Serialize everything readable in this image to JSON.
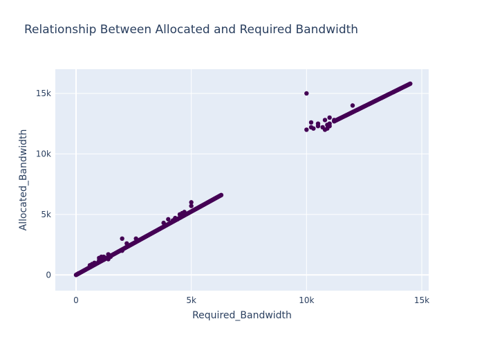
{
  "chart_data": {
    "type": "scatter",
    "title": "Relationship Between Allocated and Required Bandwidth",
    "xlabel": "Required_Bandwidth",
    "ylabel": "Allocated_Bandwidth",
    "xlim": [
      -900,
      15300
    ],
    "ylim": [
      -1300,
      17000
    ],
    "xticks": [
      {
        "value": 0,
        "label": "0"
      },
      {
        "value": 5000,
        "label": "5k"
      },
      {
        "value": 10000,
        "label": "10k"
      },
      {
        "value": 15000,
        "label": "15k"
      }
    ],
    "yticks": [
      {
        "value": 0,
        "label": "0"
      },
      {
        "value": 5000,
        "label": "5k"
      },
      {
        "value": 10000,
        "label": "10k"
      },
      {
        "value": 15000,
        "label": "15k"
      }
    ],
    "grid": true,
    "legend": "none",
    "marker_color": "#440154",
    "background_color": "#e5ecf6",
    "series": [
      {
        "trend_segments": [
          {
            "x_start": 0,
            "x_end": 6300,
            "y_start": 0,
            "y_end": 6600,
            "step": 25
          },
          {
            "x_start": 11200,
            "x_end": 14500,
            "y_start": 12700,
            "y_end": 15800,
            "step": 30
          }
        ],
        "points": [
          [
            0,
            0
          ],
          [
            50,
            60
          ],
          [
            100,
            120
          ],
          [
            600,
            800
          ],
          [
            700,
            900
          ],
          [
            800,
            1000
          ],
          [
            1000,
            1200
          ],
          [
            1000,
            1400
          ],
          [
            1100,
            1300
          ],
          [
            1100,
            1500
          ],
          [
            1200,
            1250
          ],
          [
            1200,
            1500
          ],
          [
            1300,
            1400
          ],
          [
            1400,
            1300
          ],
          [
            1400,
            1700
          ],
          [
            1500,
            1500
          ],
          [
            2000,
            2000
          ],
          [
            2000,
            3000
          ],
          [
            2200,
            2600
          ],
          [
            2600,
            3000
          ],
          [
            3800,
            4300
          ],
          [
            3900,
            4100
          ],
          [
            4000,
            4600
          ],
          [
            4200,
            4500
          ],
          [
            4300,
            4700
          ],
          [
            4400,
            4600
          ],
          [
            4500,
            5000
          ],
          [
            4600,
            5100
          ],
          [
            4700,
            5200
          ],
          [
            5000,
            5700
          ],
          [
            5000,
            6000
          ],
          [
            10000,
            12000
          ],
          [
            10000,
            15000
          ],
          [
            10200,
            12200
          ],
          [
            10200,
            12600
          ],
          [
            10300,
            12100
          ],
          [
            10500,
            12300
          ],
          [
            10500,
            12500
          ],
          [
            10700,
            12200
          ],
          [
            10800,
            12000
          ],
          [
            10800,
            12800
          ],
          [
            10900,
            12100
          ],
          [
            10900,
            12400
          ],
          [
            11000,
            12300
          ],
          [
            11000,
            12500
          ],
          [
            11000,
            13000
          ],
          [
            11200,
            12700
          ],
          [
            11200,
            12800
          ],
          [
            12000,
            14000
          ]
        ]
      }
    ]
  }
}
